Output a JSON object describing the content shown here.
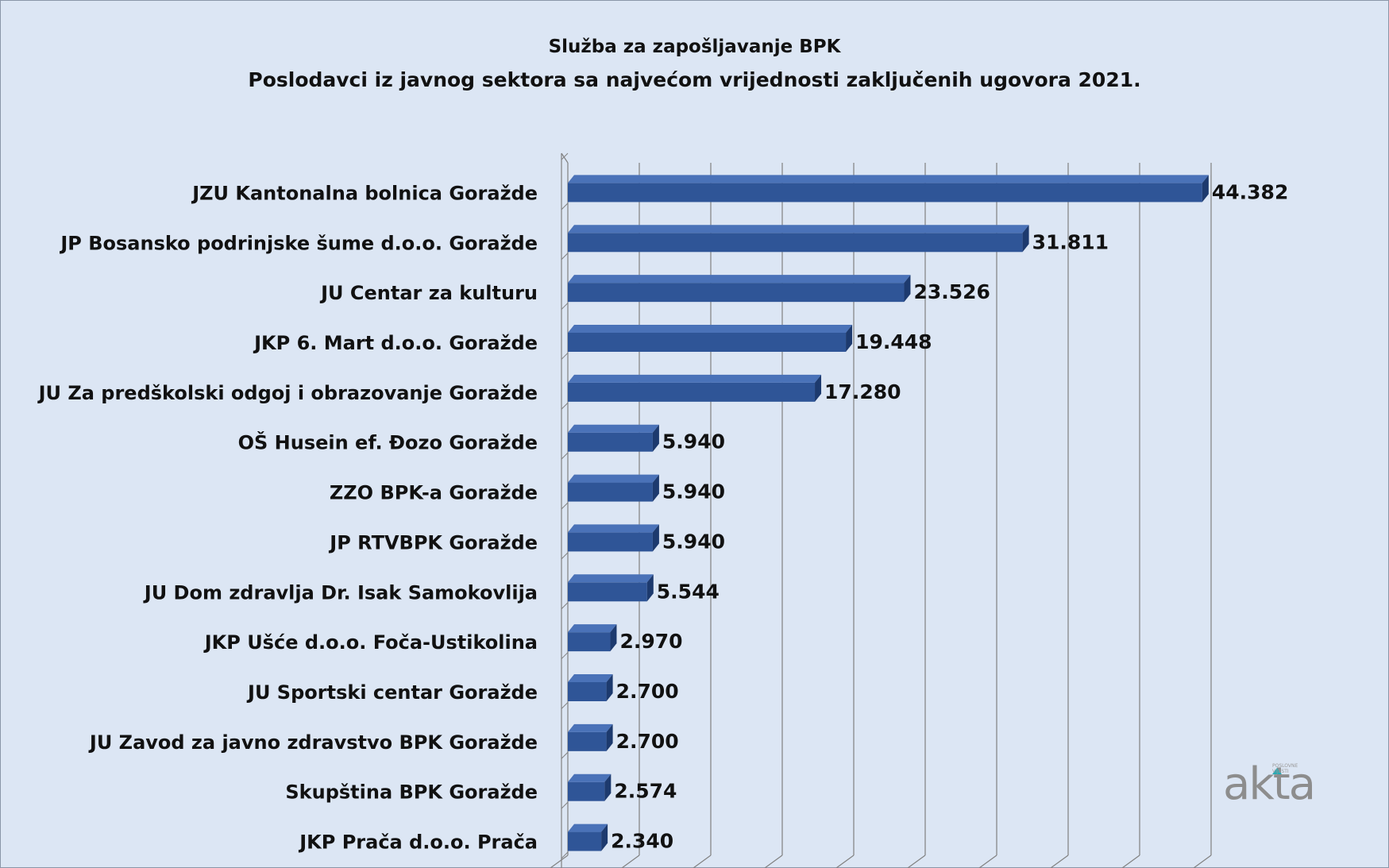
{
  "chart_data": {
    "type": "bar",
    "orientation": "horizontal",
    "style": "3d",
    "title": "Služba za zapošljavanje BPK",
    "subtitle": "Poslodavci iz javnog sektora sa najvećom vrijednosti zaključenih ugovora 2021.",
    "categories": [
      "JZU Kantonalna bolnica Goražde",
      "JP Bosansko podrinjske šume d.o.o. Goražde",
      "JU Centar za kulturu",
      "JKP 6. Mart d.o.o. Goražde",
      "JU Za predškolski odgoj i obrazovanje Goražde",
      "OŠ Husein ef. Đozo Goražde",
      "ZZO BPK-a Goražde",
      "JP RTVBPK Goražde",
      "JU Dom zdravlja Dr. Isak Samokovlija",
      "JKP Ušće d.o.o. Foča-Ustikolina",
      "JU Sportski centar Goražde",
      "JU Zavod za javno zdravstvo BPK Goražde",
      "Skupština BPK Goražde",
      "JKP Prača d.o.o. Prača"
    ],
    "values": [
      44382,
      31811,
      23526,
      19448,
      17280,
      5940,
      5940,
      5940,
      5544,
      2970,
      2700,
      2700,
      2574,
      2340
    ],
    "value_labels": [
      "44.382",
      "31.811",
      "23.526",
      "19.448",
      "17.280",
      "5.940",
      "5.940",
      "5.940",
      "5.544",
      "2.970",
      "2.700",
      "2.700",
      "2.574",
      "2.340"
    ],
    "xlim": [
      0,
      46000
    ],
    "grid": "vertical",
    "xtick_step": 5000,
    "legend": "none"
  },
  "colors": {
    "background": "#dce6f4",
    "bar_front": "#2f5597",
    "bar_top": "#4a72b8",
    "bar_side": "#1d3a6e",
    "gridline": "#808080"
  },
  "watermark": {
    "brand": "akta",
    "tagline_line1": "POSLOVNE",
    "tagline_line2": "VIJESTI"
  }
}
